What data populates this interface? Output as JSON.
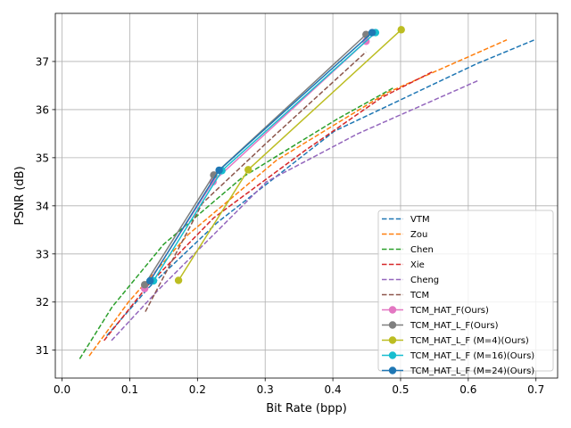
{
  "chart_data": {
    "type": "line",
    "title": "",
    "xlabel": "Bit Rate (bpp)",
    "ylabel": "PSNR (dB)",
    "xlim": [
      -0.01,
      0.732
    ],
    "ylim": [
      30.42,
      38.0
    ],
    "xticks": [
      0.0,
      0.1,
      0.2,
      0.3,
      0.4,
      0.5,
      0.6,
      0.7
    ],
    "xtick_labels": [
      "0.0",
      "0.1",
      "0.2",
      "0.3",
      "0.4",
      "0.5",
      "0.6",
      "0.7"
    ],
    "yticks": [
      31,
      32,
      33,
      34,
      35,
      36,
      37
    ],
    "ytick_labels": [
      "31",
      "32",
      "33",
      "34",
      "35",
      "36",
      "37"
    ],
    "grid": true,
    "legend_position": "lower-right",
    "series": [
      {
        "name": "VTM",
        "color": "#1f77b4",
        "style": "dashed",
        "marker": false,
        "x": [
          0.066,
          0.128,
          0.229,
          0.402,
          0.612,
          0.698
        ],
        "y": [
          31.3,
          32.3,
          33.65,
          35.55,
          36.95,
          37.45
        ]
      },
      {
        "name": "Zou",
        "color": "#ff7f0e",
        "style": "dashed",
        "marker": false,
        "x": [
          0.04,
          0.098,
          0.186,
          0.317,
          0.48,
          0.657
        ],
        "y": [
          30.88,
          32.0,
          33.4,
          34.95,
          36.35,
          37.45
        ]
      },
      {
        "name": "Chen",
        "color": "#2ca02c",
        "style": "dashed",
        "marker": false,
        "x": [
          0.026,
          0.074,
          0.15,
          0.267,
          0.406,
          0.489
        ],
        "y": [
          30.82,
          31.9,
          33.2,
          34.6,
          35.8,
          36.45
        ]
      },
      {
        "name": "Xie",
        "color": "#d62728",
        "style": "dashed",
        "marker": false,
        "x": [
          0.062,
          0.127,
          0.224,
          0.359,
          0.472,
          0.549
        ],
        "y": [
          31.2,
          32.35,
          33.75,
          35.15,
          36.25,
          36.8
        ]
      },
      {
        "name": "Cheng",
        "color": "#9467bd",
        "style": "dashed",
        "marker": false,
        "x": [
          0.073,
          0.142,
          0.302,
          0.437,
          0.614
        ],
        "y": [
          31.2,
          32.25,
          34.5,
          35.5,
          36.6
        ]
      },
      {
        "name": "TCM",
        "color": "#8c564b",
        "style": "dashed",
        "marker": false,
        "x": [
          0.123,
          0.207,
          0.309,
          0.449
        ],
        "y": [
          31.8,
          34.05,
          35.4,
          37.2
        ]
      },
      {
        "name": "TCM_HAT_F(Ours)",
        "color": "#e377c2",
        "style": "solid",
        "marker": true,
        "x": [
          0.122,
          0.223,
          0.449
        ],
        "y": [
          32.28,
          34.5,
          37.42
        ]
      },
      {
        "name": "TCM_HAT_L_F(Ours)",
        "color": "#7f7f7f",
        "style": "solid",
        "marker": true,
        "x": [
          0.122,
          0.224,
          0.449
        ],
        "y": [
          32.36,
          34.64,
          37.56
        ]
      },
      {
        "name": "TCM_HAT_L_F (M=4)(Ours)",
        "color": "#bcbd22",
        "style": "solid",
        "marker": true,
        "x": [
          0.172,
          0.275,
          0.501
        ],
        "y": [
          32.45,
          34.75,
          37.66
        ]
      },
      {
        "name": "TCM_HAT_L_F (M=16)(Ours)",
        "color": "#17becf",
        "style": "solid",
        "marker": true,
        "x": [
          0.135,
          0.236,
          0.463
        ],
        "y": [
          32.44,
          34.73,
          37.6
        ]
      },
      {
        "name": "TCM_HAT_L_F (M=24)(Ours)",
        "color": "#1f77b4",
        "style": "solid",
        "marker": true,
        "x": [
          0.13,
          0.232,
          0.458
        ],
        "y": [
          32.44,
          34.74,
          37.6
        ]
      }
    ]
  }
}
